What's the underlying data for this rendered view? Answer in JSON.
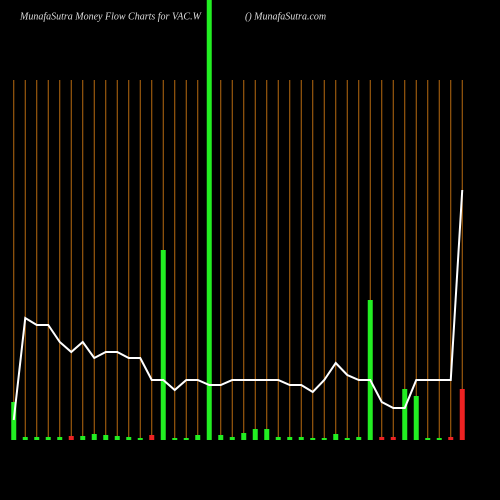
{
  "chart_data": {
    "type": "bar",
    "title": "MunafaSutra  Money Flow  Charts for VAC.W",
    "subtitle": "() MunafaSutra.com",
    "categories": [
      null,
      null,
      null,
      null,
      null,
      null,
      null,
      null,
      null,
      null,
      null,
      null,
      null,
      null,
      null,
      null,
      null,
      null,
      null,
      null,
      null,
      null,
      null,
      null,
      null,
      null,
      null,
      null,
      null,
      null,
      null,
      null,
      null,
      null,
      null,
      null,
      null,
      null,
      null,
      null
    ],
    "series": [
      {
        "type": "bar",
        "values": [
          38,
          3,
          3,
          3,
          3,
          4,
          4,
          6,
          5,
          4,
          3,
          2,
          5,
          190,
          2,
          2,
          5,
          445,
          5,
          3,
          7,
          11,
          11,
          3,
          3,
          3,
          2,
          2,
          6,
          2,
          3,
          140,
          3,
          3,
          51,
          44,
          2,
          2,
          3,
          51
        ],
        "colors": [
          "#22ee22",
          "#22ee22",
          "#22ee22",
          "#22ee22",
          "#22ee22",
          "#ee2222",
          "#22ee22",
          "#22ee22",
          "#22ee22",
          "#22ee22",
          "#22ee22",
          "#22ee22",
          "#ee2222",
          "#22ee22",
          "#22ee22",
          "#22ee22",
          "#22ee22",
          "#22ee22",
          "#22ee22",
          "#22ee22",
          "#22ee22",
          "#22ee22",
          "#22ee22",
          "#22ee22",
          "#22ee22",
          "#22ee22",
          "#22ee22",
          "#22ee22",
          "#22ee22",
          "#22ee22",
          "#22ee22",
          "#22ee22",
          "#ee2222",
          "#ee2222",
          "#22ee22",
          "#22ee22",
          "#22ee22",
          "#22ee22",
          "#ee2222",
          "#ee2222"
        ]
      },
      {
        "type": "line",
        "color": "#ffffff",
        "values": [
          20,
          122,
          115,
          115,
          98,
          88,
          98,
          82,
          88,
          88,
          82,
          82,
          60,
          60,
          50,
          60,
          60,
          55,
          55,
          60,
          60,
          60,
          60,
          60,
          55,
          55,
          48,
          60,
          77,
          65,
          60,
          60,
          38,
          32,
          32,
          60,
          60,
          60,
          60,
          250
        ]
      }
    ],
    "ylim": [
      0,
      440
    ],
    "gridline_color": "#b86a10"
  }
}
